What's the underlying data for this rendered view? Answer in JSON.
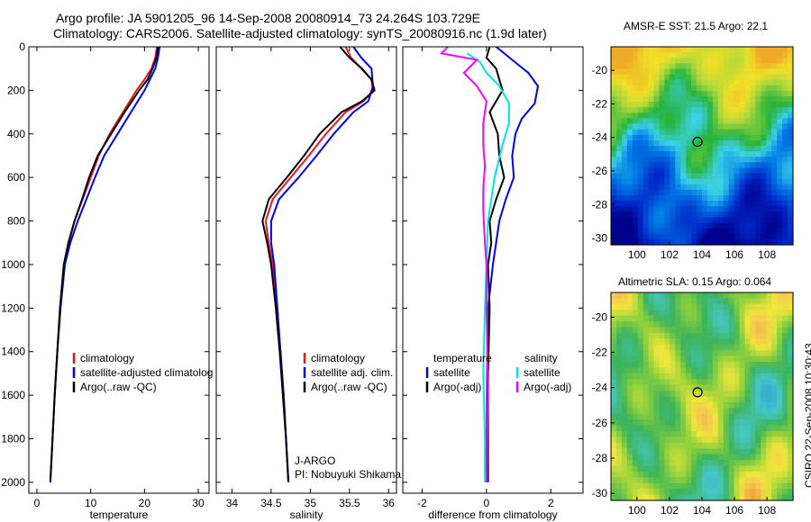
{
  "title": {
    "line1": "Argo profile: JA 5901205_96 14-Sep-2008 20080914_73 24.264S 103.729E",
    "line2": "Climatology: CARS2006. Satellite-adjusted climatology: synTS_20080916.nc (1.9d later)"
  },
  "credit": "CSIRO 22-Sep-2008 10:30:43",
  "colors": {
    "climatology": "#e41a1c",
    "satellite": "#0000ee",
    "argo": "#000000",
    "sal_satellite": "#00e5e5",
    "sal_argo": "#ff00ff"
  },
  "chart_data": [
    {
      "type": "line",
      "xlabel": "temperature",
      "ylabel": "",
      "xlim": [
        -1.5,
        32
      ],
      "ylim": [
        2050,
        0
      ],
      "y_reversed": true,
      "xticks": [
        0,
        10,
        20,
        30
      ],
      "yticks": [
        0,
        200,
        400,
        600,
        800,
        1000,
        1200,
        1400,
        1600,
        1800,
        2000
      ],
      "legend": {
        "placement": "lower-right",
        "entries": [
          "climatology",
          "satellite-adjusted climatolog",
          "Argo(..raw -QC)"
        ]
      },
      "series": [
        {
          "name": "climatology",
          "color": "#e41a1c",
          "points": [
            [
              22.3,
              0
            ],
            [
              22.0,
              50
            ],
            [
              21.3,
              100
            ],
            [
              20.0,
              150
            ],
            [
              18.5,
              200
            ],
            [
              16.0,
              300
            ],
            [
              13.5,
              400
            ],
            [
              11.5,
              500
            ],
            [
              10.0,
              600
            ],
            [
              8.5,
              700
            ],
            [
              7.0,
              800
            ],
            [
              5.8,
              900
            ],
            [
              5.0,
              1000
            ],
            [
              4.3,
              1200
            ],
            [
              3.8,
              1400
            ],
            [
              3.3,
              1600
            ],
            [
              2.9,
              1800
            ],
            [
              2.5,
              2000
            ]
          ]
        },
        {
          "name": "satellite-adjusted climatolog",
          "color": "#0000ee",
          "points": [
            [
              22.8,
              0
            ],
            [
              22.5,
              50
            ],
            [
              22.0,
              100
            ],
            [
              21.0,
              150
            ],
            [
              20.0,
              200
            ],
            [
              17.5,
              300
            ],
            [
              15.0,
              400
            ],
            [
              12.5,
              500
            ],
            [
              10.8,
              600
            ],
            [
              9.2,
              700
            ],
            [
              7.6,
              800
            ],
            [
              6.2,
              900
            ],
            [
              5.2,
              1000
            ],
            [
              4.4,
              1200
            ],
            [
              3.8,
              1400
            ],
            [
              3.3,
              1600
            ],
            [
              2.9,
              1800
            ],
            [
              2.5,
              2000
            ]
          ]
        },
        {
          "name": "Argo(..raw -QC)",
          "color": "#000000",
          "points": [
            [
              22.5,
              0
            ],
            [
              22.2,
              50
            ],
            [
              21.5,
              100
            ],
            [
              20.6,
              150
            ],
            [
              19.0,
              200
            ],
            [
              16.3,
              300
            ],
            [
              13.8,
              400
            ],
            [
              11.3,
              500
            ],
            [
              9.7,
              600
            ],
            [
              8.4,
              700
            ],
            [
              7.0,
              800
            ],
            [
              5.9,
              900
            ],
            [
              5.0,
              1000
            ],
            [
              4.3,
              1200
            ],
            [
              3.8,
              1400
            ],
            [
              3.3,
              1600
            ],
            [
              2.9,
              1800
            ],
            [
              2.5,
              1990
            ]
          ]
        }
      ]
    },
    {
      "type": "line",
      "xlabel": "salinity",
      "ylabel": "",
      "xlim": [
        33.8,
        36.1
      ],
      "ylim": [
        2050,
        0
      ],
      "y_reversed": true,
      "xticks": [
        34,
        34.5,
        35,
        35.5,
        36
      ],
      "legend": {
        "placement": "lower-right",
        "entries": [
          "climatology",
          "satellite adj. clim.",
          "Argo(..raw -QC)"
        ]
      },
      "annotation": [
        "J-ARGO",
        "PI: Nobuyuki Shikama"
      ],
      "series": [
        {
          "name": "climatology",
          "color": "#e41a1c",
          "points": [
            [
              35.45,
              0
            ],
            [
              35.52,
              50
            ],
            [
              35.65,
              100
            ],
            [
              35.78,
              150
            ],
            [
              35.8,
              200
            ],
            [
              35.68,
              250
            ],
            [
              35.45,
              300
            ],
            [
              35.2,
              400
            ],
            [
              34.98,
              500
            ],
            [
              34.75,
              600
            ],
            [
              34.52,
              700
            ],
            [
              34.43,
              800
            ],
            [
              34.47,
              900
            ],
            [
              34.52,
              1000
            ],
            [
              34.57,
              1200
            ],
            [
              34.62,
              1400
            ],
            [
              34.66,
              1600
            ],
            [
              34.69,
              1800
            ],
            [
              34.72,
              2000
            ]
          ]
        },
        {
          "name": "satellite adj. clim.",
          "color": "#0000ee",
          "points": [
            [
              35.55,
              0
            ],
            [
              35.65,
              50
            ],
            [
              35.78,
              100
            ],
            [
              35.8,
              180
            ],
            [
              35.74,
              250
            ],
            [
              35.55,
              300
            ],
            [
              35.3,
              400
            ],
            [
              35.08,
              500
            ],
            [
              34.85,
              600
            ],
            [
              34.6,
              700
            ],
            [
              34.5,
              800
            ],
            [
              34.5,
              900
            ],
            [
              34.54,
              1000
            ],
            [
              34.58,
              1200
            ],
            [
              34.62,
              1400
            ],
            [
              34.66,
              1600
            ],
            [
              34.69,
              1800
            ],
            [
              34.72,
              2000
            ]
          ]
        },
        {
          "name": "Argo(..raw -QC)",
          "color": "#000000",
          "points": [
            [
              35.38,
              0
            ],
            [
              35.5,
              50
            ],
            [
              35.66,
              100
            ],
            [
              35.78,
              150
            ],
            [
              35.82,
              200
            ],
            [
              35.66,
              250
            ],
            [
              35.4,
              300
            ],
            [
              35.12,
              400
            ],
            [
              34.92,
              500
            ],
            [
              34.7,
              600
            ],
            [
              34.47,
              700
            ],
            [
              34.39,
              800
            ],
            [
              34.45,
              900
            ],
            [
              34.5,
              1000
            ],
            [
              34.56,
              1200
            ],
            [
              34.61,
              1400
            ],
            [
              34.65,
              1600
            ],
            [
              34.69,
              1800
            ],
            [
              34.72,
              1990
            ]
          ]
        }
      ]
    },
    {
      "type": "line",
      "xlabel": "difference from climatology",
      "ylabel": "",
      "xlim": [
        -2.6,
        3.0
      ],
      "ylim": [
        2050,
        0
      ],
      "y_reversed": true,
      "xticks": [
        -2,
        0,
        2
      ],
      "legend": {
        "placement": "lower-center",
        "entries": [
          "temperature",
          "satellite",
          "Argo(-adj)",
          "salinity",
          "satellite",
          "Argo(-adj)"
        ]
      },
      "series": [
        {
          "name": "temperature satellite",
          "color": "#0000ee",
          "points": [
            [
              0.3,
              0
            ],
            [
              0.8,
              60
            ],
            [
              1.3,
              120
            ],
            [
              1.6,
              180
            ],
            [
              1.5,
              260
            ],
            [
              1.1,
              330
            ],
            [
              0.9,
              400
            ],
            [
              0.8,
              500
            ],
            [
              0.85,
              600
            ],
            [
              0.6,
              700
            ],
            [
              0.4,
              800
            ],
            [
              0.2,
              1000
            ],
            [
              0.05,
              1200
            ],
            [
              0.02,
              1500
            ],
            [
              0.0,
              2000
            ]
          ]
        },
        {
          "name": "temperature Argo(-adj)",
          "color": "#000000",
          "points": [
            [
              0.1,
              0
            ],
            [
              0.0,
              50
            ],
            [
              0.3,
              100
            ],
            [
              0.4,
              150
            ],
            [
              0.5,
              200
            ],
            [
              0.1,
              300
            ],
            [
              0.35,
              400
            ],
            [
              0.4,
              500
            ],
            [
              0.55,
              600
            ],
            [
              0.3,
              700
            ],
            [
              0.1,
              800
            ],
            [
              0.15,
              900
            ],
            [
              0.05,
              1000
            ],
            [
              0.1,
              1200
            ],
            [
              0.05,
              1500
            ],
            [
              0.05,
              2000
            ]
          ]
        },
        {
          "name": "salinity satellite",
          "color": "#00e5e5",
          "points": [
            [
              -0.6,
              30
            ],
            [
              -0.2,
              70
            ],
            [
              0.0,
              120
            ],
            [
              0.4,
              180
            ],
            [
              0.7,
              260
            ],
            [
              0.7,
              350
            ],
            [
              0.5,
              450
            ],
            [
              0.25,
              600
            ],
            [
              0.05,
              800
            ],
            [
              0.0,
              1000
            ],
            [
              -0.05,
              1200
            ],
            [
              -0.1,
              1500
            ],
            [
              -0.05,
              1800
            ],
            [
              -0.05,
              2000
            ]
          ]
        },
        {
          "name": "salinity Argo(-adj)",
          "color": "#ff00ff",
          "points": [
            [
              -1.2,
              0
            ],
            [
              -1.4,
              30
            ],
            [
              -0.3,
              60
            ],
            [
              -0.7,
              120
            ],
            [
              -0.3,
              180
            ],
            [
              0.0,
              250
            ],
            [
              -0.1,
              350
            ],
            [
              -0.1,
              450
            ],
            [
              -0.05,
              550
            ],
            [
              -0.1,
              650
            ],
            [
              -0.1,
              750
            ],
            [
              -0.05,
              900
            ],
            [
              0.0,
              1000
            ],
            [
              0.0,
              1200
            ],
            [
              0.05,
              1600
            ],
            [
              0.0,
              2000
            ]
          ]
        }
      ]
    },
    {
      "type": "heatmap",
      "title": "AMSR-E SST: 21.5 Argo: 22.1",
      "xlim": [
        98.4,
        109.6
      ],
      "ylim": [
        -30.4,
        -18.6
      ],
      "xticks": [
        100,
        102,
        104,
        106,
        108
      ],
      "yticks": [
        -20,
        -22,
        -24,
        -26,
        -28,
        -30
      ],
      "marker": {
        "lon": 103.729,
        "lat": -24.264
      }
    },
    {
      "type": "heatmap",
      "title": "Altimetric SLA: 0.15 Argo: 0.064",
      "xlim": [
        98.4,
        109.6
      ],
      "ylim": [
        -30.4,
        -18.6
      ],
      "xticks": [
        100,
        102,
        104,
        106,
        108
      ],
      "yticks": [
        -20,
        -22,
        -24,
        -26,
        -28,
        -30
      ],
      "marker": {
        "lon": 103.729,
        "lat": -24.264
      }
    }
  ]
}
